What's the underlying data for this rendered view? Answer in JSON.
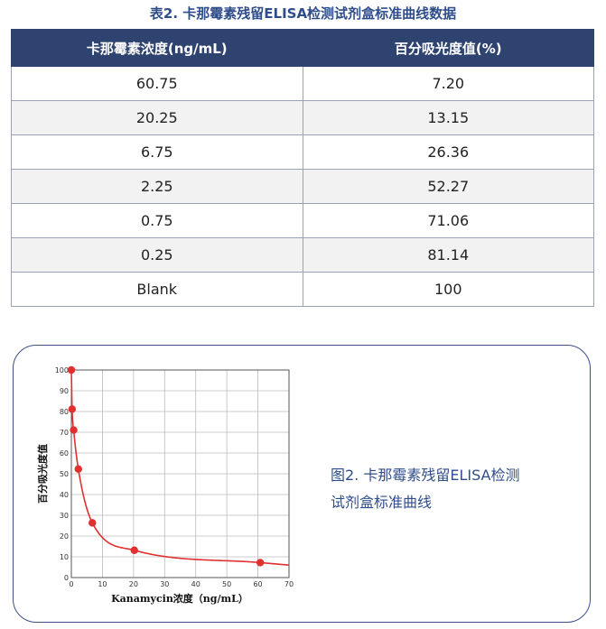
{
  "table": {
    "title": "表2. 卡那霉素残留ELISA检测试剂盒标准曲线数据",
    "headers": [
      "卡那霉素浓度(ng/mL)",
      "百分吸光度值(%)"
    ],
    "rows": [
      [
        "60.75",
        "7.20"
      ],
      [
        "20.25",
        "13.15"
      ],
      [
        "6.75",
        "26.36"
      ],
      [
        "2.25",
        "52.27"
      ],
      [
        "0.75",
        "71.06"
      ],
      [
        "0.25",
        "81.14"
      ],
      [
        "Blank",
        "100"
      ]
    ]
  },
  "figure": {
    "caption_line1": "图2. 卡那霉素残留ELISA检测",
    "caption_line2": "试剂盒标准曲线"
  },
  "chart_data": {
    "type": "scatter",
    "xlabel": "Kanamycin浓度（ng/mL）",
    "ylabel": "百分吸光度值",
    "xlim": [
      0,
      70
    ],
    "ylim": [
      0,
      100
    ],
    "xticks": [
      0,
      10,
      20,
      30,
      40,
      50,
      60,
      70
    ],
    "yticks": [
      0,
      10,
      20,
      30,
      40,
      50,
      60,
      70,
      80,
      90,
      100
    ],
    "grid": true,
    "points": [
      {
        "x": 0,
        "y": 100
      },
      {
        "x": 0.25,
        "y": 81.14
      },
      {
        "x": 0.75,
        "y": 71.06
      },
      {
        "x": 2.25,
        "y": 52.27
      },
      {
        "x": 6.75,
        "y": 26.36
      },
      {
        "x": 20.25,
        "y": 13.15
      },
      {
        "x": 60.75,
        "y": 7.2
      }
    ],
    "point_color": "#e03030",
    "curve_color": "#e03030"
  }
}
